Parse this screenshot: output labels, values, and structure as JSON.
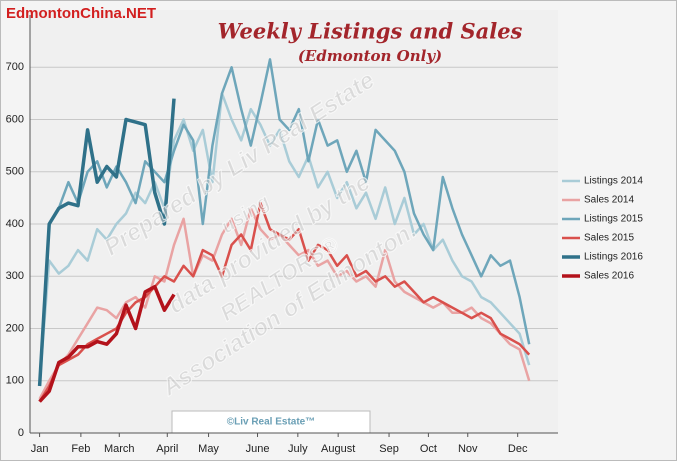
{
  "chart_data": {
    "type": "line",
    "brand": "EdmontonChina.NET",
    "title": "Weekly Listings and Sales",
    "subtitle": "(Edmonton Only)",
    "watermark": [
      "Prepared by Liv Real Estate",
      "using",
      "data provided by the",
      "REALTORS®",
      "Association of Edmonton."
    ],
    "footer": "©Liv Real Estate™",
    "x": [
      1,
      2,
      3,
      4,
      5,
      6,
      7,
      8,
      9,
      10,
      11,
      12,
      13,
      14,
      15,
      16,
      17,
      18,
      19,
      20,
      21,
      22,
      23,
      24,
      25,
      26,
      27,
      28,
      29,
      30,
      31,
      32,
      33,
      34,
      35,
      36,
      37,
      38,
      39,
      40,
      41,
      42,
      43,
      44,
      45,
      46,
      47,
      48,
      49,
      50,
      51,
      52
    ],
    "xlim": [
      0,
      55
    ],
    "xticks": [
      {
        "value": 1,
        "label": "Jan"
      },
      {
        "value": 5.3,
        "label": "Feb"
      },
      {
        "value": 9.3,
        "label": "March"
      },
      {
        "value": 14.3,
        "label": "April"
      },
      {
        "value": 18.6,
        "label": "May"
      },
      {
        "value": 23.7,
        "label": "June"
      },
      {
        "value": 27.9,
        "label": "July"
      },
      {
        "value": 32.1,
        "label": "August"
      },
      {
        "value": 37.4,
        "label": "Sep"
      },
      {
        "value": 41.5,
        "label": "Oct"
      },
      {
        "value": 45.6,
        "label": "Nov"
      },
      {
        "value": 50.8,
        "label": "Dec"
      }
    ],
    "ylim": [
      0,
      800
    ],
    "yticks": [
      0,
      100,
      200,
      300,
      400,
      500,
      600,
      700
    ],
    "grid": true,
    "legend": "right",
    "series": [
      {
        "name": "Listings 2014",
        "color": "#a9ccd7",
        "width": 2.5,
        "values": [
          95,
          330,
          305,
          320,
          350,
          330,
          390,
          370,
          400,
          420,
          460,
          440,
          480,
          430,
          560,
          600,
          540,
          580,
          480,
          650,
          600,
          560,
          620,
          590,
          550,
          580,
          520,
          490,
          530,
          470,
          500,
          450,
          480,
          430,
          460,
          410,
          470,
          400,
          450,
          380,
          400,
          350,
          370,
          330,
          300,
          290,
          260,
          250,
          230,
          210,
          190,
          130
        ]
      },
      {
        "name": "Sales 2014",
        "color": "#e9a3a3",
        "width": 2.5,
        "values": [
          65,
          100,
          130,
          150,
          180,
          210,
          240,
          235,
          220,
          250,
          260,
          240,
          300,
          290,
          360,
          410,
          300,
          340,
          330,
          380,
          410,
          360,
          430,
          390,
          370,
          380,
          360,
          340,
          350,
          320,
          330,
          300,
          310,
          290,
          300,
          280,
          350,
          290,
          270,
          260,
          250,
          240,
          250,
          230,
          230,
          240,
          220,
          210,
          190,
          170,
          160,
          100
        ]
      },
      {
        "name": "Listings 2015",
        "color": "#6ea6ba",
        "width": 2.5,
        "values": [
          90,
          400,
          430,
          480,
          440,
          500,
          520,
          470,
          510,
          480,
          440,
          520,
          500,
          480,
          540,
          590,
          560,
          400,
          550,
          650,
          700,
          620,
          550,
          630,
          715,
          600,
          580,
          620,
          520,
          600,
          550,
          560,
          500,
          540,
          480,
          580,
          560,
          540,
          500,
          420,
          380,
          350,
          490,
          430,
          380,
          340,
          300,
          340,
          320,
          330,
          260,
          170
        ]
      },
      {
        "name": "Sales 2015",
        "color": "#d9504c",
        "width": 2.5,
        "values": [
          60,
          90,
          130,
          140,
          150,
          170,
          180,
          190,
          200,
          230,
          250,
          260,
          280,
          300,
          290,
          320,
          300,
          350,
          340,
          300,
          360,
          380,
          350,
          440,
          390,
          380,
          370,
          390,
          330,
          360,
          350,
          320,
          340,
          300,
          310,
          290,
          300,
          280,
          290,
          270,
          250,
          260,
          250,
          240,
          230,
          220,
          230,
          220,
          190,
          180,
          170,
          150
        ]
      },
      {
        "name": "Listings 2016",
        "color": "#2f7189",
        "width": 3.5,
        "values": [
          90,
          400,
          430,
          440,
          435,
          580,
          480,
          510,
          490,
          600,
          595,
          590,
          460,
          400,
          640,
          null,
          null,
          null,
          null,
          null,
          null,
          null,
          null,
          null,
          null,
          null,
          null,
          null,
          null,
          null,
          null,
          null,
          null,
          null,
          null,
          null,
          null,
          null,
          null,
          null,
          null,
          null,
          null,
          null,
          null,
          null,
          null,
          null,
          null,
          null,
          null,
          null
        ]
      },
      {
        "name": "Sales 2016",
        "color": "#b3121b",
        "width": 3.5,
        "values": [
          60,
          80,
          135,
          145,
          165,
          165,
          175,
          170,
          190,
          245,
          200,
          270,
          280,
          235,
          265,
          null,
          null,
          null,
          null,
          null,
          null,
          null,
          null,
          null,
          null,
          null,
          null,
          null,
          null,
          null,
          null,
          null,
          null,
          null,
          null,
          null,
          null,
          null,
          null,
          null,
          null,
          null,
          null,
          null,
          null,
          null,
          null,
          null,
          null,
          null,
          null,
          null
        ]
      }
    ]
  }
}
